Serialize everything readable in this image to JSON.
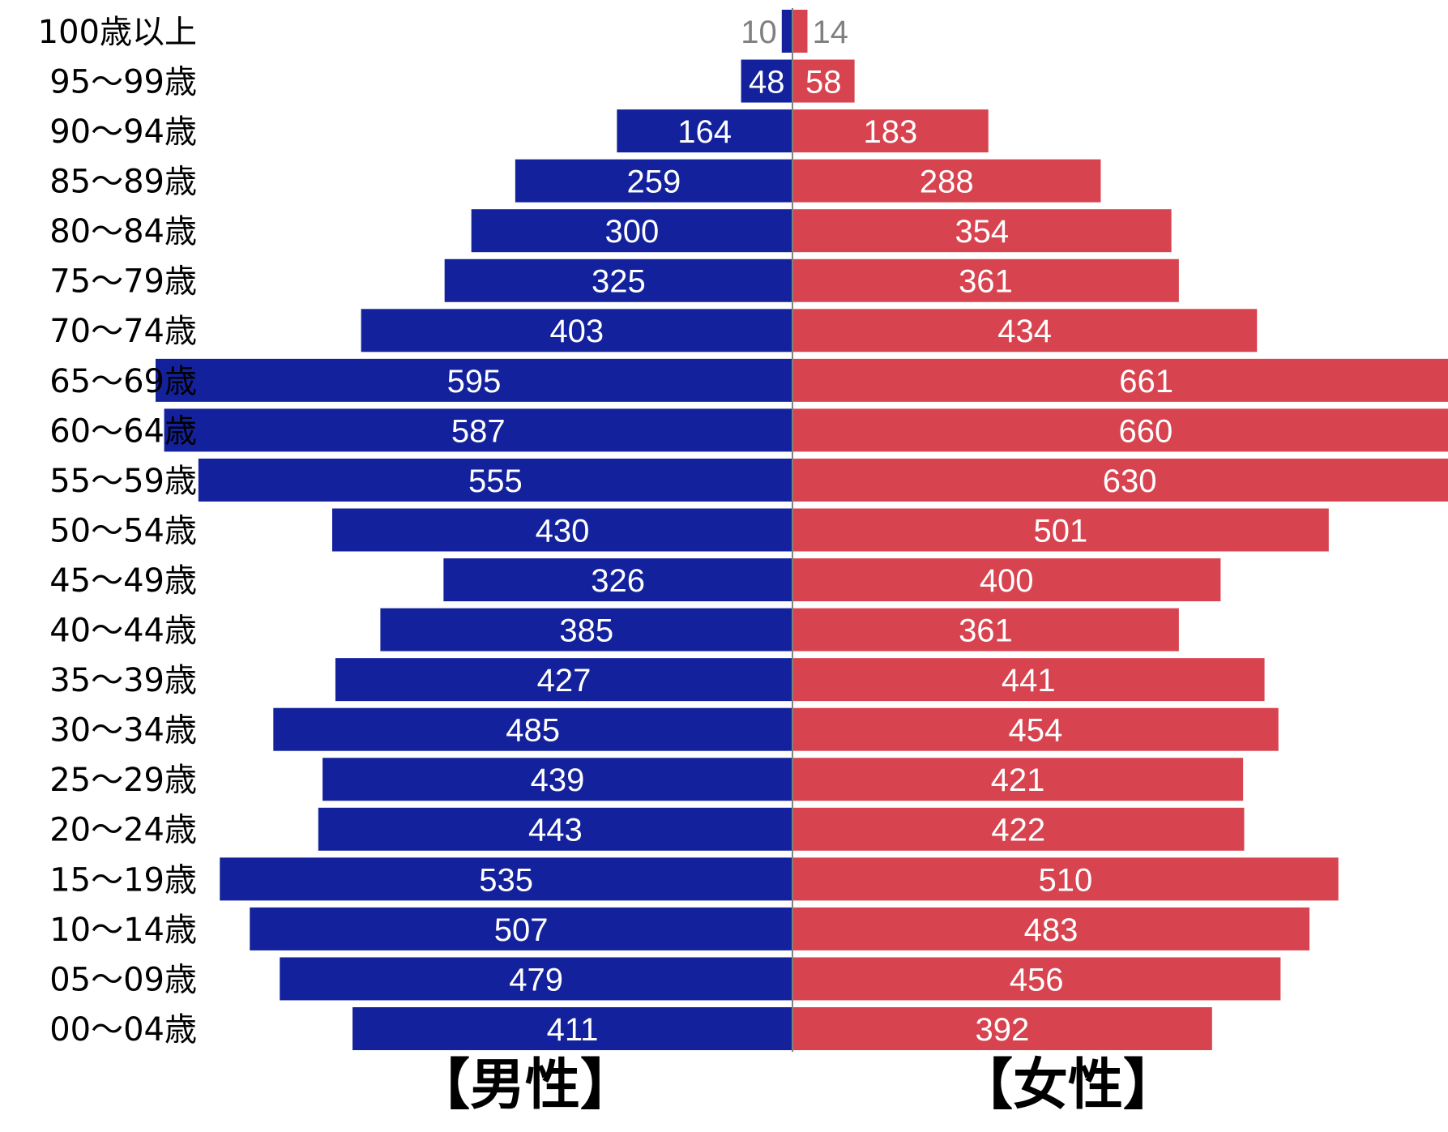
{
  "chart_data": {
    "type": "bar",
    "orientation": "horizontal-population-pyramid",
    "categories": [
      "100歳以上",
      "95～99歳",
      "90～94歳",
      "85～89歳",
      "80～84歳",
      "75～79歳",
      "70～74歳",
      "65～69歳",
      "60～64歳",
      "55～59歳",
      "50～54歳",
      "45～49歳",
      "40～44歳",
      "35～39歳",
      "30～34歳",
      "25～29歳",
      "20～24歳",
      "15～19歳",
      "10～14歳",
      "05～09歳",
      "00～04歳"
    ],
    "series": [
      {
        "name": "【男性】",
        "side": "left",
        "color": "#13229c",
        "values": [
          10,
          48,
          164,
          259,
          300,
          325,
          403,
          595,
          587,
          555,
          430,
          326,
          385,
          427,
          485,
          439,
          443,
          535,
          507,
          479,
          411
        ]
      },
      {
        "name": "【女性】",
        "side": "right",
        "color": "#d7444f",
        "values": [
          14,
          58,
          183,
          288,
          354,
          361,
          434,
          661,
          660,
          630,
          501,
          400,
          361,
          441,
          454,
          421,
          422,
          510,
          483,
          456,
          392
        ]
      }
    ],
    "xlim": [
      0,
      595
    ],
    "title": "",
    "xlabel": "",
    "ylabel": "",
    "grid": false,
    "legend": "none",
    "label_color_inside": "#ffffff",
    "label_color_outside": "#808080",
    "axis_color": "#808080"
  },
  "labels": {
    "male": "【男性】",
    "female": "【女性】"
  }
}
